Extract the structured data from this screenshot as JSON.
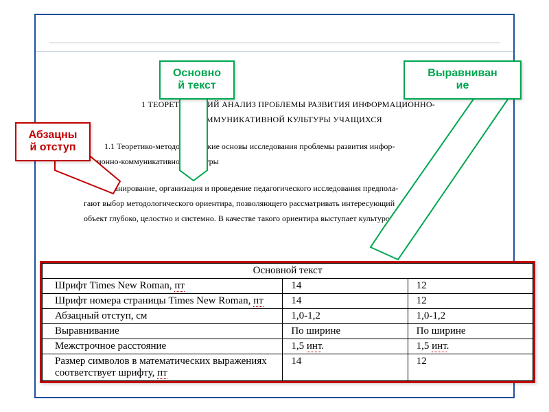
{
  "callouts": {
    "left": {
      "text": "Абзацны\nй отступ",
      "color": "#c00000"
    },
    "top": {
      "text": "Основно\nй текст",
      "color": "#00a650"
    },
    "right": {
      "text": "Выравниван\nие",
      "color": "#00a650"
    }
  },
  "document": {
    "heading_line1": "1 ТЕОРЕТИЧЕСКИЙ АНАЛИЗ ПРОБЛЕМЫ РАЗВИТИЯ ИНФОРМАЦИОННО-",
    "heading_line2": "КОММУНИКАТИВНОЙ КУЛЬТУРЫ УЧАЩИХСЯ",
    "subheading": "1.1 Теоретико-методологические основы исследования проблемы развития инфор-\nмационно-коммуникативной культуры",
    "paragraph": "Планирование, организация и проведение педагогического исследования предпола-\nгают выбор методологического ориентира, позволяющего рассматривать интересующий\nобъект глубоко, целостно и системно. В качестве такого ориентира выступает культуроло-"
  },
  "table": {
    "title": "Основной текст",
    "col_widths_pct": [
      49,
      25.5,
      25.5
    ],
    "underline_color": "#c00000",
    "rows": [
      {
        "label_parts": [
          [
            "plain",
            "Шрифт Times New Roman, "
          ],
          [
            "u",
            "пт"
          ]
        ],
        "v1": "14",
        "v2": "12"
      },
      {
        "label_parts": [
          [
            "plain",
            "Шрифт номера страницы Times New Roman, "
          ],
          [
            "u",
            "пт"
          ]
        ],
        "v1": "14",
        "v2": "12"
      },
      {
        "label_parts": [
          [
            "plain",
            "Абзацный отступ, см"
          ]
        ],
        "v1": "1,0-1,2",
        "v2": "1,0-1,2"
      },
      {
        "label_parts": [
          [
            "plain",
            "Выравнивание"
          ]
        ],
        "v1": "По ширине",
        "v2": "По ширине"
      },
      {
        "label_parts": [
          [
            "plain",
            "Межстрочное расстояние"
          ]
        ],
        "v1_parts": [
          [
            "plain",
            "1,5 "
          ],
          [
            "u",
            "инт"
          ],
          [
            "plain",
            "."
          ]
        ],
        "v2_parts": [
          [
            "plain",
            "1,5 "
          ],
          [
            "u",
            "инт"
          ],
          [
            "plain",
            "."
          ]
        ]
      },
      {
        "label_parts": [
          [
            "plain",
            "Размер символов в математических выражениях соответствует шрифту, "
          ],
          [
            "u",
            "пт"
          ]
        ],
        "v1": "14",
        "v2": "12"
      }
    ]
  },
  "style": {
    "green": "#00a650",
    "red": "#c00000",
    "blue": "#1f4e9b"
  }
}
